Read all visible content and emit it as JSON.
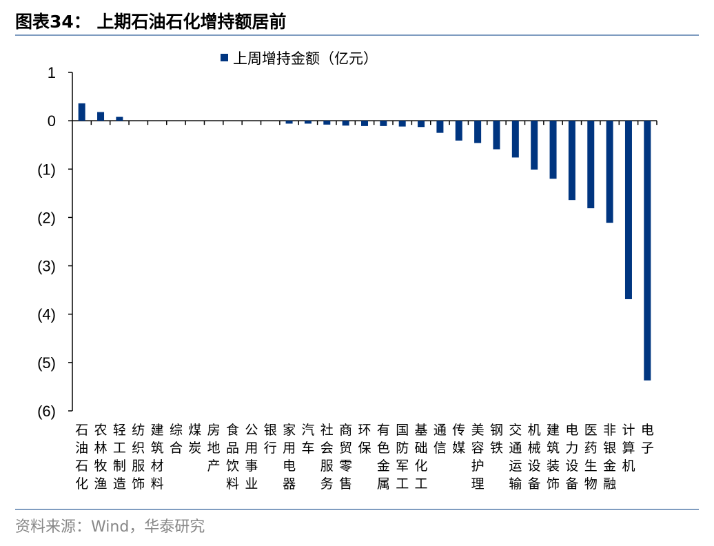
{
  "title": "图表34：  上期石油石化增持额居前",
  "source": "资料来源：Wind，华泰研究",
  "chart_data": {
    "type": "bar",
    "title": "",
    "legend": {
      "position": "top",
      "entries": [
        "上周增持金额（亿元）"
      ]
    },
    "series": [
      {
        "name": "上周增持金额（亿元）",
        "color": "#003580",
        "values": [
          0.36,
          0.18,
          0.08,
          0,
          0,
          0,
          0,
          0,
          0,
          0,
          0,
          -0.06,
          -0.06,
          -0.08,
          -0.1,
          -0.11,
          -0.11,
          -0.12,
          -0.13,
          -0.25,
          -0.41,
          -0.46,
          -0.59,
          -0.76,
          -1.01,
          -1.2,
          -1.64,
          -1.81,
          -2.11,
          -3.69,
          -5.37
        ]
      }
    ],
    "categories": [
      "石油石化",
      "农林牧渔",
      "轻工制造",
      "纺织服饰",
      "建筑材料",
      "综合",
      "煤炭",
      "房地产",
      "食品饮料",
      "公用事业",
      "银行",
      "家用电器",
      "汽车",
      "社会服务",
      "商贸零售",
      "环保",
      "有色金属",
      "国防军工",
      "基础化工",
      "通信",
      "传媒",
      "美容护理",
      "钢铁",
      "交通运输",
      "机械设备",
      "建筑装饰",
      "电力设备",
      "医药生物",
      "非银金融",
      "计算机",
      "电子"
    ],
    "ylim": [
      -6,
      1
    ],
    "yticks": [
      1,
      0,
      -1,
      -2,
      -3,
      -4,
      -5,
      -6
    ],
    "ytick_labels": [
      "1",
      "0",
      "(1)",
      "(2)",
      "(3)",
      "(4)",
      "(5)",
      "(6)"
    ],
    "grid": false
  }
}
